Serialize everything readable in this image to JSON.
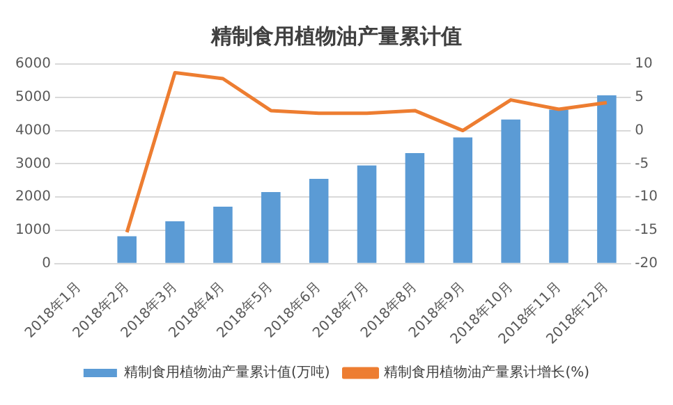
{
  "chart_data": {
    "type": "bar",
    "title": "精制食用植物油产量累计值",
    "categories": [
      "2018年1月",
      "2018年2月",
      "2018年3月",
      "2018年4月",
      "2018年5月",
      "2018年6月",
      "2018年7月",
      "2018年8月",
      "2018年9月",
      "2018年10月",
      "2018年11月",
      "2018年12月"
    ],
    "series": [
      {
        "name": "精制食用植物油产量累计值(万吨)",
        "color": "#5b9bd5",
        "values": [
          null,
          820,
          1270,
          1710,
          2150,
          2550,
          2950,
          3320,
          3790,
          4330,
          4630,
          5060
        ]
      },
      {
        "name": "精制食用植物油产量累计增长(%)",
        "type": "line",
        "axis": "y2",
        "color": "#ed7d31",
        "values": [
          null,
          -15.3,
          8.7,
          7.8,
          3.0,
          2.6,
          2.6,
          3.0,
          0.0,
          4.6,
          3.2,
          4.2
        ]
      }
    ],
    "ylim": [
      0,
      6000
    ],
    "yticks": [
      0,
      1000,
      2000,
      3000,
      4000,
      5000,
      6000
    ],
    "y2lim": [
      -20,
      10
    ],
    "y2ticks": [
      -20,
      -15,
      -10,
      -5,
      0,
      5,
      10
    ],
    "grid": "y",
    "legend": "bottom",
    "marker": "none",
    "line_style": "solid"
  }
}
